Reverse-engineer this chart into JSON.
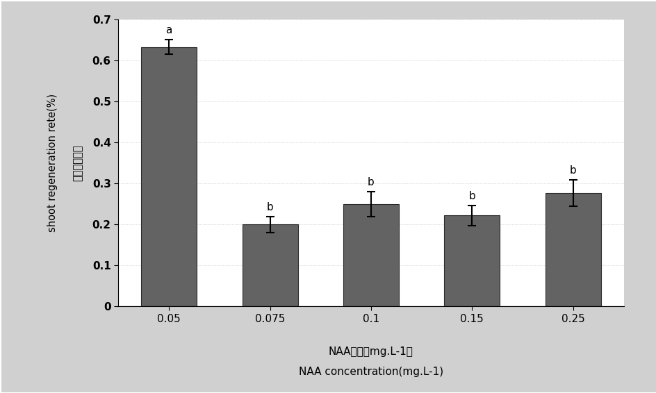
{
  "categories": [
    "0.05",
    "0.075",
    "0.1",
    "0.15",
    "0.25"
  ],
  "values": [
    0.633,
    0.2,
    0.25,
    0.222,
    0.277
  ],
  "errors": [
    0.018,
    0.02,
    0.03,
    0.025,
    0.032
  ],
  "letters": [
    "a",
    "b",
    "b",
    "b",
    "b"
  ],
  "bar_color": "#636363",
  "bar_edgecolor": "#2a2a2a",
  "ylabel_en": "shoot regeneration rete(%)",
  "ylabel_cn": "芝试导再生率",
  "xlabel_cn": "NAA浓度（mg.L-1）",
  "xlabel_en": "NAA concentration(mg.L-1)",
  "ylim": [
    0,
    0.7
  ],
  "yticks": [
    0,
    0.1,
    0.2,
    0.3,
    0.4,
    0.5,
    0.6,
    0.7
  ],
  "ytick_labels": [
    "0",
    "0.1",
    "0.2",
    "0.3",
    "0.4",
    "0.5",
    "0.6",
    "0.7"
  ],
  "figsize": [
    9.45,
    5.66
  ],
  "dpi": 100,
  "bg_color": "#ffffff",
  "outer_bg": "#d0d0d0"
}
